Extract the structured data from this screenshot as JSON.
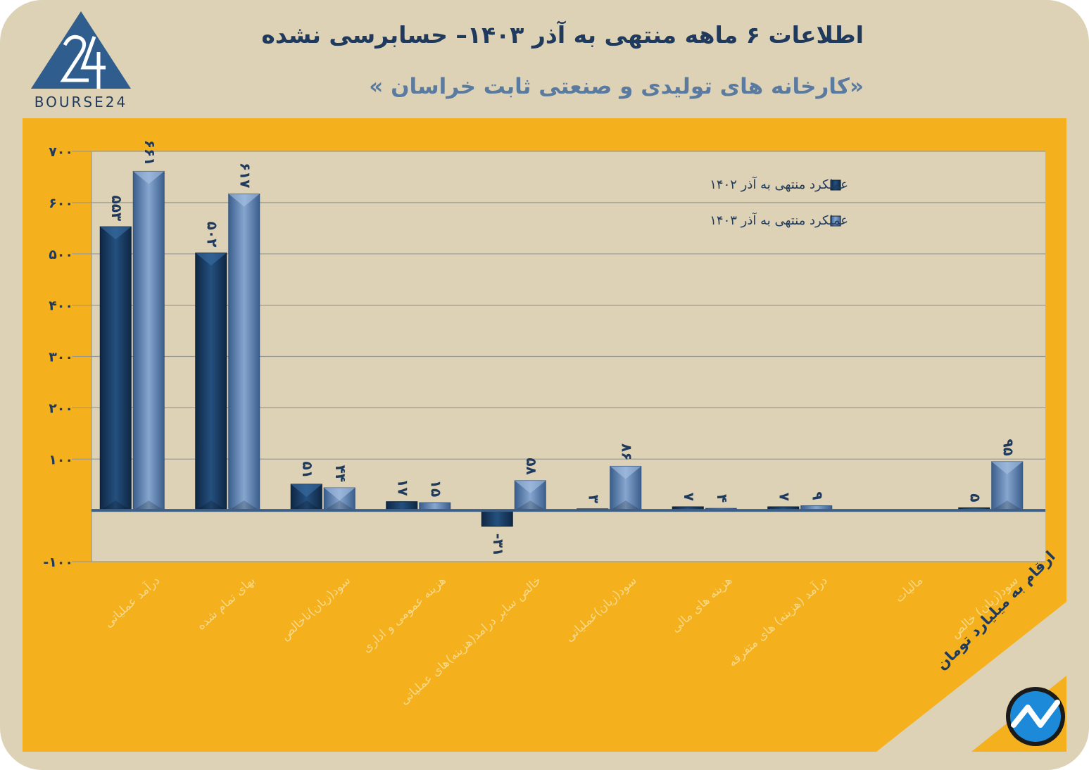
{
  "header": {
    "title": "اطلاعات ۶ ماهه منتهی به آذر ۱۴۰۳– حسابرسی نشده",
    "subtitle": "«کارخانه های تولیدی و صنعتی ثابت خراسان »",
    "logo_text": "BOURSE24"
  },
  "footer": {
    "unit_note": "ارقام به میلیارد تومان"
  },
  "colors": {
    "background": "#ddd2b5",
    "panel": "#f5b01d",
    "series_1402": "#1c3d63",
    "series_1403": "#5b7fae",
    "text": "#1f3a5c"
  },
  "chart_data": {
    "type": "bar",
    "categories": [
      "درآمد عملیاتی",
      "بهای تمام شده",
      "سود(زیان)ناخالص",
      "هزینه عمومی و اداری",
      "خالص سایر درامد(هزینه)های عملیاتی",
      "سود(زیان)عملیاتی",
      "هزینه های مالی",
      "درآمد (هزینه) های متفرقه",
      "مالیات",
      "سود(زیان) خالص"
    ],
    "series": [
      {
        "name": "عملکرد منتهی به آذر ۱۴۰۲",
        "values": [
          553,
          502,
          51,
          17,
          -31,
          3,
          7,
          7,
          null,
          5
        ],
        "labels": [
          "۵۵۳",
          "۵۰۲",
          "۵۱",
          "۱۷",
          "-۳۱",
          "۳",
          "۷",
          "۷",
          "",
          "۵"
        ]
      },
      {
        "name": "عملکرد منتهی به آذر ۱۴۰۳",
        "values": [
          661,
          617,
          44,
          15,
          58,
          86,
          4,
          9,
          null,
          95
        ],
        "labels": [
          "۶۶۱",
          "۶۱۷",
          "۴۴",
          "۱۵",
          "۵۸",
          "۸۶",
          "۴",
          "۹",
          "",
          "۹۵"
        ]
      }
    ],
    "ylim": [
      -100,
      700
    ],
    "yticks": [
      -100,
      100,
      200,
      300,
      400,
      500,
      600,
      700
    ],
    "ytick_labels": [
      "-۱۰۰",
      "۱۰۰",
      "۲۰۰",
      "۳۰۰",
      "۴۰۰",
      "۵۰۰",
      "۶۰۰",
      "۷۰۰"
    ],
    "grid": true,
    "legend_position": "top-right"
  }
}
